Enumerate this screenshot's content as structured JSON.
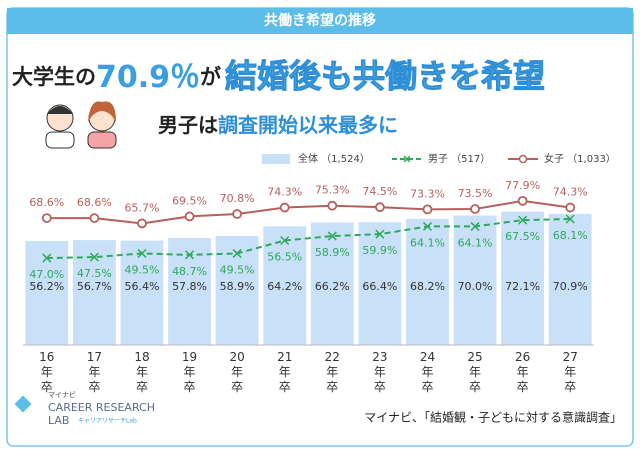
{
  "header": "共働き希望の推移",
  "headline": {
    "part1": "大学生の",
    "highlight": "70.9％",
    "part2": "が",
    "main": "結婚後も共働きを希望"
  },
  "subheadline": {
    "part1": "男子は",
    "highlight": "調査開始以来最多に"
  },
  "chart_data": {
    "type": "bar_line",
    "categories": [
      "16年卒",
      "17年卒",
      "18年卒",
      "19年卒",
      "20年卒",
      "21年卒",
      "22年卒",
      "23年卒",
      "24年卒",
      "25年卒",
      "26年卒",
      "27年卒"
    ],
    "series": [
      {
        "name": "全体 （1,524）",
        "type": "bar",
        "color": "#c9e1f8",
        "values": [
          56.2,
          56.7,
          56.4,
          57.8,
          58.9,
          64.2,
          66.2,
          66.4,
          68.2,
          70.0,
          72.1,
          70.9
        ],
        "value_labels": [
          "56.2%",
          "56.7%",
          "56.4%",
          "57.8%",
          "58.9%",
          "64.2%",
          "66.2%",
          "66.4%",
          "68.2%",
          "70.0%",
          "72.1%",
          "70.9%"
        ]
      },
      {
        "name": "男子 （517）",
        "type": "line",
        "dashed": true,
        "color": "#2ea85a",
        "values": [
          47.0,
          47.5,
          49.5,
          48.7,
          49.5,
          56.5,
          58.9,
          59.9,
          64.1,
          64.1,
          67.5,
          68.1
        ],
        "value_labels": [
          "47.0%",
          "47.5%",
          "49.5%",
          "48.7%",
          "49.5%",
          "56.5%",
          "58.9%",
          "59.9%",
          "64.1%",
          "64.1%",
          "67.5%",
          "68.1%"
        ]
      },
      {
        "name": "女子 （1,033）",
        "type": "line",
        "dashed": false,
        "color": "#b5605c",
        "values": [
          68.6,
          68.6,
          65.7,
          69.5,
          70.8,
          74.3,
          75.3,
          74.5,
          73.3,
          73.5,
          77.9,
          74.3
        ],
        "value_labels": [
          "68.6%",
          "68.6%",
          "65.7%",
          "69.5%",
          "70.8%",
          "74.3%",
          "75.3%",
          "74.5%",
          "73.3%",
          "73.5%",
          "77.9%",
          "74.3%"
        ]
      }
    ]
  },
  "logo": {
    "brand": "マイナビ",
    "line1": "CAREER RESEARCH",
    "line2": "LAB",
    "sub": "キャリアリサーチLab"
  },
  "source": "マイナビ、「結婚観・子どもに対する意識調査」"
}
